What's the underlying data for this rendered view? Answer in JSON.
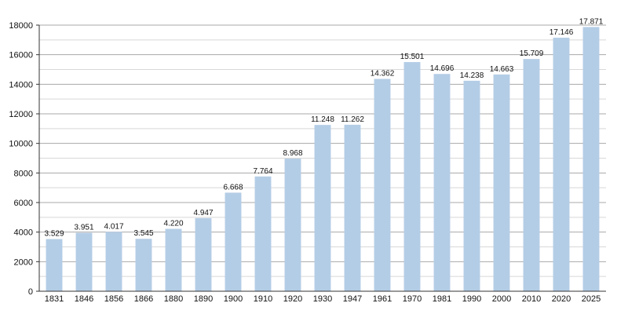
{
  "chart_data": {
    "type": "bar",
    "categories": [
      "1831",
      "1846",
      "1856",
      "1866",
      "1880",
      "1890",
      "1900",
      "1910",
      "1920",
      "1930",
      "1947",
      "1961",
      "1970",
      "1981",
      "1990",
      "2000",
      "2010",
      "2020",
      "2025"
    ],
    "values": [
      3529,
      3951,
      4017,
      3545,
      4220,
      4947,
      6668,
      7764,
      8968,
      11248,
      11262,
      14362,
      15501,
      14696,
      14238,
      14663,
      15709,
      17146,
      17871
    ],
    "value_labels": [
      "3.529",
      "3.951",
      "4.017",
      "3.545",
      "4.220",
      "4.947",
      "6.668",
      "7.764",
      "8.968",
      "11.248",
      "11.262",
      "14.362",
      "15.501",
      "14.696",
      "14.238",
      "14.663",
      "15.709",
      "17.146",
      "17.871"
    ],
    "y_ticks": [
      0,
      2000,
      4000,
      6000,
      8000,
      10000,
      12000,
      14000,
      16000,
      18000
    ],
    "ylim": [
      0,
      18000
    ],
    "minor_grid_step": 1000,
    "grid": true,
    "title": "",
    "xlabel": "",
    "ylabel": "",
    "colors": {
      "bar": "#b4cde6",
      "major_grid": "#a8a8a8",
      "minor_grid": "#d8d8d8",
      "axis": "#333333",
      "text": "#111111"
    }
  }
}
